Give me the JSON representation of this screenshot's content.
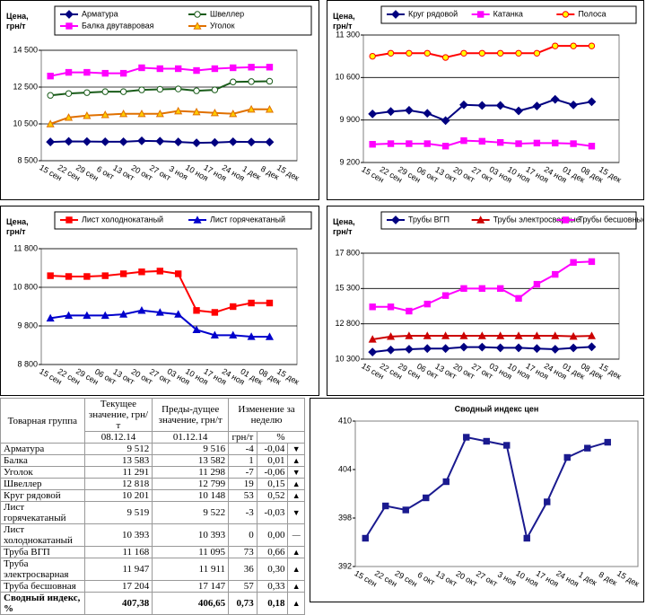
{
  "chart_data": [
    {
      "type": "line",
      "ylabel": "Цена, грн/т",
      "legend": "top-grid",
      "categories": [
        "15 сен",
        "22 сен",
        "29 сен",
        "6 окт",
        "13 окт",
        "20 окт",
        "27 окт",
        "3 ноя",
        "10 ноя",
        "17 ноя",
        "24 ноя",
        "1 дек",
        "8 дек",
        "15 дек"
      ],
      "ylim": [
        8500,
        14500
      ],
      "yticks": [
        {
          "value": 8500,
          "label": "8 500"
        },
        {
          "value": 10500,
          "label": "10 500"
        },
        {
          "value": 12500,
          "label": "12 500"
        },
        {
          "value": 14500,
          "label": "14 500"
        }
      ],
      "grid": true,
      "series": [
        {
          "name": "Арматура",
          "color": "#000080",
          "marker": "diamond",
          "marker_fill": "#000080",
          "values": [
            9520,
            9550,
            9540,
            9530,
            9530,
            9580,
            9560,
            9520,
            9470,
            9490,
            9530,
            9516,
            9512,
            null
          ]
        },
        {
          "name": "Швеллер",
          "color": "#1a5c1a",
          "marker": "circle",
          "marker_fill": "#ffffff",
          "values": [
            12050,
            12150,
            12200,
            12250,
            12250,
            12350,
            12380,
            12400,
            12300,
            12350,
            12780,
            12799,
            12818,
            null
          ]
        },
        {
          "name": "Балка двутавровая",
          "color": "#ff00ff",
          "marker": "square",
          "marker_fill": "#ff00ff",
          "values": [
            13100,
            13300,
            13300,
            13250,
            13250,
            13550,
            13500,
            13500,
            13400,
            13500,
            13550,
            13582,
            13583,
            null
          ]
        },
        {
          "name": "Уголок",
          "color": "#e07000",
          "marker": "triangle",
          "marker_fill": "#ffcc00",
          "values": [
            10500,
            10850,
            10950,
            11000,
            11050,
            11050,
            11050,
            11200,
            11150,
            11100,
            11050,
            11298,
            11291,
            null
          ]
        }
      ]
    },
    {
      "type": "line",
      "ylabel": "Цена, грн/т",
      "legend": "top-row",
      "categories": [
        "15 сен",
        "22 сен",
        "29 сен",
        "06 окт",
        "13 окт",
        "20 окт",
        "27 окт",
        "03 ноя",
        "10 ноя",
        "17 ноя",
        "24 ноя",
        "01 дек",
        "08 дек",
        "15 дек"
      ],
      "ylim": [
        9200,
        11300
      ],
      "yticks": [
        {
          "value": 9200,
          "label": "9 200"
        },
        {
          "value": 9900,
          "label": "9 900"
        },
        {
          "value": 10600,
          "label": "10 600"
        },
        {
          "value": 11300,
          "label": "11 300"
        }
      ],
      "grid": true,
      "series": [
        {
          "name": "Круг рядовой",
          "color": "#000080",
          "marker": "diamond",
          "marker_fill": "#000080",
          "values": [
            10000,
            10040,
            10060,
            10010,
            9890,
            10150,
            10140,
            10140,
            10050,
            10130,
            10240,
            10148,
            10201,
            null
          ]
        },
        {
          "name": "Катанка",
          "color": "#ff00ff",
          "marker": "square",
          "marker_fill": "#ff00ff",
          "values": [
            9500,
            9510,
            9510,
            9510,
            9470,
            9560,
            9550,
            9530,
            9510,
            9520,
            9520,
            9510,
            9470,
            null
          ]
        },
        {
          "name": "Полоса",
          "color": "#ff0000",
          "marker": "circle",
          "marker_fill": "#ffff00",
          "values": [
            10950,
            11000,
            11000,
            11000,
            10930,
            11000,
            11000,
            11000,
            11000,
            11000,
            11120,
            11120,
            11120,
            null
          ]
        }
      ]
    },
    {
      "type": "line",
      "ylabel": "Цена, грн/т",
      "legend": "top-row",
      "categories": [
        "15 сен",
        "22 сен",
        "29 сен",
        "06 окт",
        "13 окт",
        "20 окт",
        "27 окт",
        "03 ноя",
        "10 ноя",
        "17 ноя",
        "24 ноя",
        "01 дек",
        "08 дек",
        "15 дек"
      ],
      "ylim": [
        8800,
        11800
      ],
      "yticks": [
        {
          "value": 8800,
          "label": "8 800"
        },
        {
          "value": 9800,
          "label": "9 800"
        },
        {
          "value": 10800,
          "label": "10 800"
        },
        {
          "value": 11800,
          "label": "11 800"
        }
      ],
      "grid": true,
      "series": [
        {
          "name": "Лист холоднокатаный",
          "color": "#ff0000",
          "marker": "square",
          "marker_fill": "#ff0000",
          "values": [
            11100,
            11080,
            11080,
            11100,
            11150,
            11200,
            11220,
            11150,
            10200,
            10150,
            10300,
            10393,
            10393,
            null
          ]
        },
        {
          "name": "Лист горячекатаный",
          "color": "#0000cc",
          "marker": "triangle",
          "marker_fill": "#0000cc",
          "values": [
            10000,
            10070,
            10070,
            10070,
            10100,
            10200,
            10150,
            10100,
            9700,
            9560,
            9560,
            9522,
            9519,
            null
          ]
        }
      ]
    },
    {
      "type": "line",
      "ylabel": "Цена, грн/т",
      "legend": "top-row",
      "categories": [
        "15 сен",
        "22 сен",
        "29 сен",
        "06 окт",
        "13 окт",
        "20 окт",
        "27 окт",
        "03 ноя",
        "10 ноя",
        "17 ноя",
        "24 ноя",
        "01 дек",
        "08 дек",
        "15 дек"
      ],
      "ylim": [
        10300,
        17800
      ],
      "yticks": [
        {
          "value": 10300,
          "label": "10 300"
        },
        {
          "value": 12800,
          "label": "12 800"
        },
        {
          "value": 15300,
          "label": "15 300"
        },
        {
          "value": 17800,
          "label": "17 800"
        }
      ],
      "grid": true,
      "series": [
        {
          "name": "Трубы ВГП",
          "color": "#000080",
          "marker": "diamond",
          "marker_fill": "#000080",
          "values": [
            10800,
            10950,
            11000,
            11050,
            11050,
            11150,
            11150,
            11100,
            11100,
            11050,
            11000,
            11095,
            11168,
            null
          ]
        },
        {
          "name": "Трубы электросварные",
          "color": "#cc0000",
          "marker": "triangle",
          "marker_fill": "#cc0000",
          "values": [
            11700,
            11900,
            11950,
            11950,
            11950,
            11950,
            11950,
            11950,
            11950,
            11950,
            11950,
            11911,
            11947,
            null
          ]
        },
        {
          "name": "Трубы бесшовные",
          "color": "#ff00ff",
          "marker": "square",
          "marker_fill": "#ff00ff",
          "values": [
            14000,
            14000,
            13700,
            14200,
            14800,
            15300,
            15300,
            15300,
            14600,
            15600,
            16300,
            17147,
            17204,
            null
          ]
        }
      ]
    },
    {
      "type": "line",
      "title": "Сводный индекс цен",
      "legend": "none",
      "categories": [
        "15 сен",
        "22 сен",
        "29 сен",
        "6 окт",
        "13 окт",
        "20 окт",
        "27 окт",
        "3 ноя",
        "10 ноя",
        "17 ноя",
        "24 ноя",
        "1 дек",
        "8 дек",
        "15 дек"
      ],
      "ylim": [
        392,
        410
      ],
      "yticks": [
        392,
        398,
        404,
        410
      ],
      "grid": false,
      "series": [
        {
          "color": "#1a1a8f",
          "marker": "square",
          "marker_fill": "#1a1a8f",
          "values": [
            395.5,
            399.5,
            399,
            400.5,
            402.5,
            408,
            407.5,
            407,
            395.5,
            400,
            405.5,
            406.65,
            407.38,
            null
          ]
        }
      ]
    }
  ],
  "table": {
    "headers": [
      "Товарная группа",
      "Текущее значение, грн/т",
      "Преды-дущее значение, грн/т",
      "Изменение за неделю"
    ],
    "subheaders": [
      "08.12.14",
      "01.12.14",
      "грн/т",
      "%"
    ],
    "rows": [
      [
        "Арматура",
        "9 512",
        "9 516",
        "-4",
        "-0,04",
        "▼"
      ],
      [
        "Балка",
        "13 583",
        "13 582",
        "1",
        "0,01",
        "▲"
      ],
      [
        "Уголок",
        "11 291",
        "11 298",
        "-7",
        "-0,06",
        "▼"
      ],
      [
        "Швеллер",
        "12 818",
        "12 799",
        "19",
        "0,15",
        "▲"
      ],
      [
        "Круг рядовой",
        "10 201",
        "10 148",
        "53",
        "0,52",
        "▲"
      ],
      [
        "Лист горячекатаный",
        "9 519",
        "9 522",
        "-3",
        "-0,03",
        "▼"
      ],
      [
        "Лист холоднокатаный",
        "10 393",
        "10 393",
        "0",
        "0,00",
        "—"
      ],
      [
        "Труба ВГП",
        "11 168",
        "11 095",
        "73",
        "0,66",
        "▲"
      ],
      [
        "Труба электросварная",
        "11 947",
        "11 911",
        "36",
        "0,30",
        "▲"
      ],
      [
        "Труба бесшовная",
        "17 204",
        "17 147",
        "57",
        "0,33",
        "▲"
      ],
      [
        "Сводный индекс, %",
        "407,38",
        "406,65",
        "0,73",
        "0,18",
        "▲"
      ]
    ]
  }
}
